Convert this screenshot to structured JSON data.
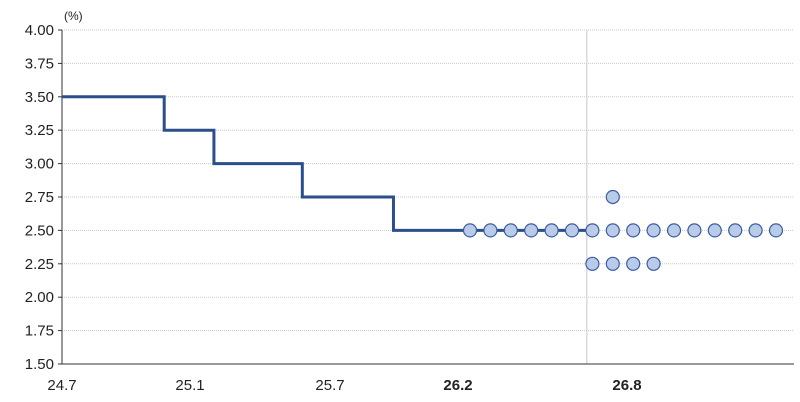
{
  "chart_data": {
    "type": "line",
    "title": "",
    "ylabel": "(%)",
    "xlabel": "",
    "ylim": [
      1.5,
      4.0
    ],
    "yticks": [
      "4.00",
      "3.75",
      "3.50",
      "3.25",
      "3.00",
      "2.75",
      "2.50",
      "2.25",
      "2.00",
      "1.75",
      "1.50"
    ],
    "xticks": [
      {
        "label": "24.7",
        "bold": false
      },
      {
        "label": "25.1",
        "bold": false
      },
      {
        "label": "25.7",
        "bold": false
      },
      {
        "label": "26.2",
        "bold": true
      },
      {
        "label": "26.8",
        "bold": true
      }
    ],
    "grid": true,
    "step_series": {
      "x": [
        0,
        3.7,
        5.5,
        8.7,
        12.0,
        19.0
      ],
      "y": [
        3.5,
        3.25,
        3.0,
        2.75,
        2.5,
        2.5
      ]
    },
    "projection_divider_x": 19.0,
    "dot_series": {
      "columns": [
        {
          "y": [
            2.5
          ]
        },
        {
          "y": [
            2.5
          ]
        },
        {
          "y": [
            2.5
          ]
        },
        {
          "y": [
            2.5
          ]
        },
        {
          "y": [
            2.5
          ]
        },
        {
          "y": [
            2.5
          ]
        },
        {
          "y": [
            2.5,
            2.25
          ]
        },
        {
          "y": [
            2.75,
            2.5,
            2.25
          ]
        },
        {
          "y": [
            2.5,
            2.25
          ]
        },
        {
          "y": [
            2.5,
            2.25
          ]
        },
        {
          "y": [
            2.5
          ]
        },
        {
          "y": [
            2.5
          ]
        },
        {
          "y": [
            2.5
          ]
        },
        {
          "y": [
            2.5
          ]
        },
        {
          "y": [
            2.5
          ]
        },
        {
          "y": [
            2.5
          ]
        }
      ]
    },
    "colors": {
      "line": "#2b4f8a",
      "dot_fill": "#b9cbe8",
      "dot_stroke": "#3b5da0",
      "grid": "#c8c8c8",
      "axis": "#333333"
    }
  }
}
